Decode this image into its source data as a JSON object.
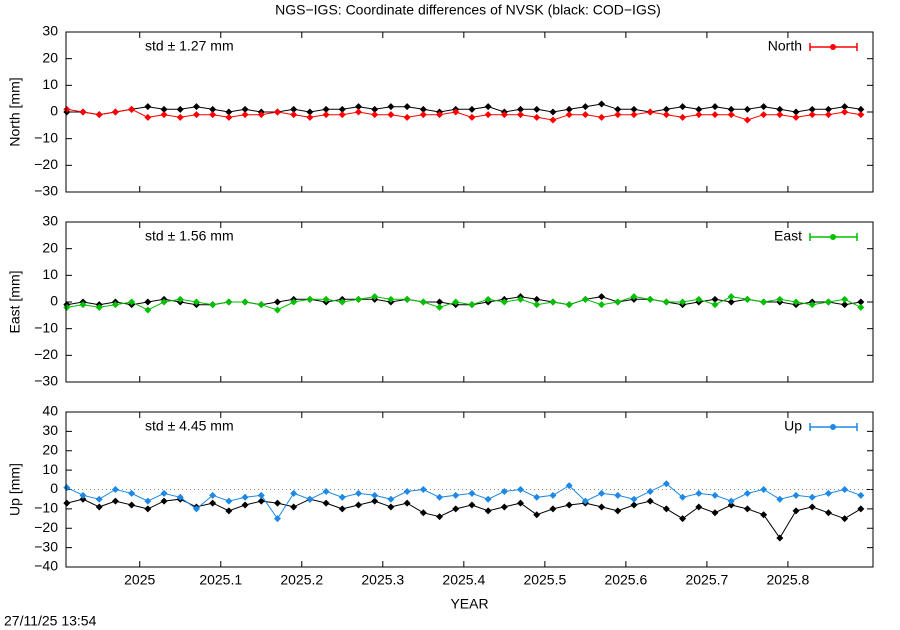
{
  "title": "NGS−IGS: Coordinate differences of NVSK (black: COD−IGS)",
  "timestamp": "27/11/25 13:54",
  "chart_data": [
    {
      "type": "line",
      "ylabel": "North [mm]",
      "annotation": "std ± 1.27 mm",
      "legend": "upper right",
      "xlim": [
        2024.909,
        2025.905
      ],
      "ylim": [
        -30,
        30
      ],
      "yticks": [
        {
          "value": -30,
          "label": "−30"
        },
        {
          "value": -20,
          "label": "−20"
        },
        {
          "value": -10,
          "label": "−10"
        },
        0,
        10,
        20,
        30
      ],
      "xticks": [
        2025,
        2025.1,
        2025.2,
        2025.3,
        2025.4,
        2025.5,
        2025.6,
        2025.7,
        2025.8
      ],
      "x": [
        2024.91,
        2024.93,
        2024.95,
        2024.97,
        2024.99,
        2025.01,
        2025.03,
        2025.05,
        2025.07,
        2025.09,
        2025.11,
        2025.13,
        2025.15,
        2025.17,
        2025.19,
        2025.21,
        2025.23,
        2025.25,
        2025.27,
        2025.29,
        2025.31,
        2025.33,
        2025.35,
        2025.37,
        2025.39,
        2025.41,
        2025.43,
        2025.45,
        2025.47,
        2025.49,
        2025.51,
        2025.53,
        2025.55,
        2025.57,
        2025.59,
        2025.61,
        2025.63,
        2025.65,
        2025.67,
        2025.69,
        2025.71,
        2025.73,
        2025.75,
        2025.77,
        2025.79,
        2025.81,
        2025.83,
        2025.85,
        2025.87,
        2025.89
      ],
      "series": [
        {
          "color": "#000000",
          "values": [
            0,
            0,
            -1,
            0,
            1,
            2,
            1,
            1,
            2,
            1,
            0,
            1,
            0,
            0,
            1,
            0,
            1,
            1,
            2,
            1,
            2,
            2,
            1,
            0,
            1,
            1,
            2,
            0,
            1,
            1,
            0,
            1,
            2,
            3,
            1,
            1,
            0,
            1,
            2,
            1,
            2,
            1,
            1,
            2,
            1,
            0,
            1,
            1,
            2,
            1
          ]
        },
        {
          "name": "North",
          "color": "#ff0000",
          "values": [
            1,
            0,
            -1,
            0,
            1,
            -2,
            -1,
            -2,
            -1,
            -1,
            -2,
            -1,
            -1,
            0,
            -1,
            -2,
            -1,
            -1,
            0,
            -1,
            -1,
            -2,
            -1,
            -1,
            0,
            -2,
            -1,
            -1,
            -1,
            -2,
            -3,
            -1,
            -1,
            -2,
            -1,
            -1,
            0,
            -1,
            -2,
            -1,
            -1,
            -1,
            -3,
            -1,
            -1,
            -2,
            -1,
            -1,
            0,
            -1
          ]
        }
      ]
    },
    {
      "type": "line",
      "ylabel": "East [mm]",
      "annotation": "std ± 1.56 mm",
      "legend": "upper right",
      "xlim": [
        2024.909,
        2025.905
      ],
      "ylim": [
        -30,
        30
      ],
      "yticks": [
        {
          "value": -30,
          "label": "−30"
        },
        {
          "value": -20,
          "label": "−20"
        },
        {
          "value": -10,
          "label": "−10"
        },
        0,
        10,
        20,
        30
      ],
      "xticks": [
        2025,
        2025.1,
        2025.2,
        2025.3,
        2025.4,
        2025.5,
        2025.6,
        2025.7,
        2025.8
      ],
      "x": [
        2024.91,
        2024.93,
        2024.95,
        2024.97,
        2024.99,
        2025.01,
        2025.03,
        2025.05,
        2025.07,
        2025.09,
        2025.11,
        2025.13,
        2025.15,
        2025.17,
        2025.19,
        2025.21,
        2025.23,
        2025.25,
        2025.27,
        2025.29,
        2025.31,
        2025.33,
        2025.35,
        2025.37,
        2025.39,
        2025.41,
        2025.43,
        2025.45,
        2025.47,
        2025.49,
        2025.51,
        2025.53,
        2025.55,
        2025.57,
        2025.59,
        2025.61,
        2025.63,
        2025.65,
        2025.67,
        2025.69,
        2025.71,
        2025.73,
        2025.75,
        2025.77,
        2025.79,
        2025.81,
        2025.83,
        2025.85,
        2025.87,
        2025.89
      ],
      "series": [
        {
          "color": "#000000",
          "values": [
            -1,
            0,
            -1,
            0,
            -1,
            0,
            1,
            0,
            -1,
            -1,
            0,
            0,
            -1,
            0,
            1,
            1,
            0,
            1,
            1,
            1,
            0,
            1,
            0,
            0,
            -1,
            -1,
            0,
            1,
            2,
            1,
            0,
            -1,
            1,
            2,
            0,
            1,
            1,
            0,
            -1,
            0,
            1,
            0,
            1,
            0,
            0,
            -1,
            0,
            0,
            -1,
            0
          ]
        },
        {
          "name": "East",
          "color": "#00c000",
          "values": [
            -2,
            -1,
            -2,
            -1,
            0,
            -3,
            0,
            1,
            0,
            -1,
            0,
            0,
            -1,
            -3,
            0,
            1,
            1,
            0,
            1,
            2,
            1,
            1,
            0,
            -2,
            0,
            -1,
            1,
            0,
            1,
            -1,
            0,
            -1,
            1,
            -1,
            0,
            2,
            1,
            0,
            0,
            1,
            -1,
            2,
            1,
            0,
            1,
            0,
            -1,
            0,
            1,
            -2
          ]
        }
      ]
    },
    {
      "type": "line",
      "ylabel": "Up [mm]",
      "xlabel": "YEAR",
      "annotation": "std ± 4.45 mm",
      "legend": "upper right",
      "zero_line": true,
      "xlim": [
        2024.909,
        2025.905
      ],
      "ylim": [
        -40,
        40
      ],
      "yticks": [
        {
          "value": -40,
          "label": "−40"
        },
        {
          "value": -30,
          "label": "−30"
        },
        {
          "value": -20,
          "label": "−20"
        },
        {
          "value": -10,
          "label": "−10"
        },
        0,
        10,
        20,
        30,
        40
      ],
      "xticks": [
        2025,
        2025.1,
        2025.2,
        2025.3,
        2025.4,
        2025.5,
        2025.6,
        2025.7,
        2025.8
      ],
      "x": [
        2024.91,
        2024.93,
        2024.95,
        2024.97,
        2024.99,
        2025.01,
        2025.03,
        2025.05,
        2025.07,
        2025.09,
        2025.11,
        2025.13,
        2025.15,
        2025.17,
        2025.19,
        2025.21,
        2025.23,
        2025.25,
        2025.27,
        2025.29,
        2025.31,
        2025.33,
        2025.35,
        2025.37,
        2025.39,
        2025.41,
        2025.43,
        2025.45,
        2025.47,
        2025.49,
        2025.51,
        2025.53,
        2025.55,
        2025.57,
        2025.59,
        2025.61,
        2025.63,
        2025.65,
        2025.67,
        2025.69,
        2025.71,
        2025.73,
        2025.75,
        2025.77,
        2025.79,
        2025.81,
        2025.83,
        2025.85,
        2025.87,
        2025.89
      ],
      "series": [
        {
          "color": "#000000",
          "values": [
            -7,
            -5,
            -9,
            -6,
            -8,
            -10,
            -6,
            -5,
            -9,
            -7,
            -11,
            -8,
            -6,
            -7,
            -9,
            -5,
            -7,
            -10,
            -8,
            -6,
            -9,
            -7,
            -12,
            -14,
            -10,
            -8,
            -11,
            -9,
            -7,
            -13,
            -10,
            -8,
            -7,
            -9,
            -11,
            -8,
            -6,
            -10,
            -15,
            -9,
            -12,
            -8,
            -10,
            -13,
            -25,
            -11,
            -9,
            -12,
            -15,
            -10
          ]
        },
        {
          "name": "Up",
          "color": "#1e88e5",
          "values": [
            1,
            -3,
            -5,
            0,
            -2,
            -6,
            -2,
            -4,
            -10,
            -3,
            -6,
            -4,
            -3,
            -15,
            -2,
            -5,
            -1,
            -4,
            -2,
            -3,
            -5,
            -1,
            0,
            -4,
            -3,
            -2,
            -5,
            -1,
            0,
            -4,
            -3,
            2,
            -6,
            -2,
            -3,
            -5,
            -1,
            3,
            -4,
            -2,
            -3,
            -6,
            -2,
            0,
            -5,
            -3,
            -4,
            -2,
            0,
            -3
          ]
        }
      ]
    }
  ]
}
